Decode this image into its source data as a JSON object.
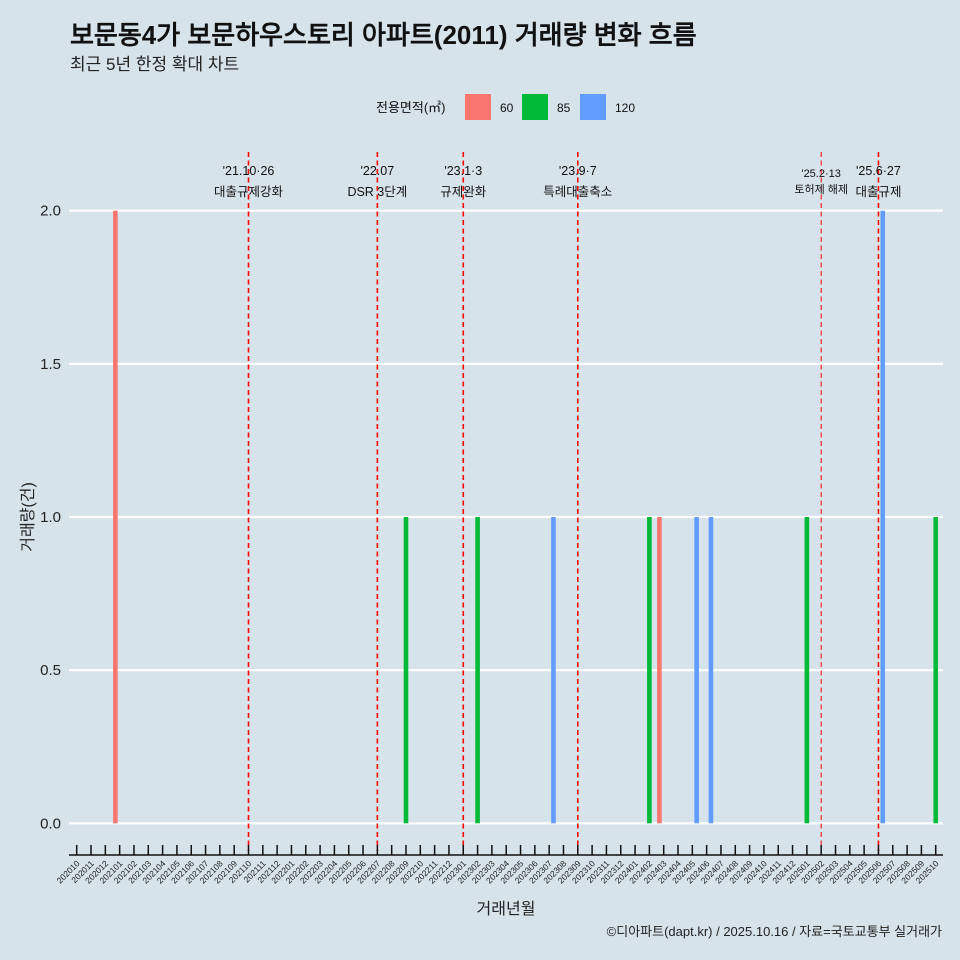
{
  "header": {
    "title": "보문동4가 보문하우스토리 아파트(2011) 거래량 변화 흐름",
    "subtitle": "최근 5년 한정 확대 차트"
  },
  "legend": {
    "title": "전용면적(㎡)",
    "items": [
      {
        "label": "60",
        "color": "#F8766D"
      },
      {
        "label": "85",
        "color": "#00BA38"
      },
      {
        "label": "120",
        "color": "#619CFF"
      }
    ]
  },
  "axes": {
    "xlabel": "거래년월",
    "ylabel": "거래량(건)"
  },
  "caption": "©디아파트(dapt.kr) / 2025.10.16 / 자료=국토교통부 실거래가",
  "chart_data": {
    "type": "bar",
    "title": "보문동4가 보문하우스토리 아파트(2011) 거래량 변화 흐름",
    "subtitle": "최근 5년 한정 확대 차트",
    "xlabel": "거래년월",
    "ylabel": "거래량(건)",
    "ylim": [
      0,
      2
    ],
    "yticks": [
      0,
      0.5,
      1,
      1.5,
      2
    ],
    "ytick_labels": [
      "0.0",
      "0.5",
      "1.0",
      "1.5",
      "2.0"
    ],
    "grid": true,
    "legend_position": "top",
    "legend_title": "전용면적(㎡)",
    "categories": [
      "202010",
      "202011",
      "202012",
      "202101",
      "202102",
      "202103",
      "202104",
      "202105",
      "202106",
      "202107",
      "202108",
      "202109",
      "202110",
      "202111",
      "202112",
      "202201",
      "202202",
      "202203",
      "202204",
      "202205",
      "202206",
      "202207",
      "202208",
      "202209",
      "202210",
      "202211",
      "202212",
      "202301",
      "202302",
      "202303",
      "202304",
      "202305",
      "202306",
      "202307",
      "202308",
      "202309",
      "202310",
      "202311",
      "202312",
      "202401",
      "202402",
      "202403",
      "202404",
      "202405",
      "202406",
      "202407",
      "202408",
      "202409",
      "202410",
      "202411",
      "202412",
      "202501",
      "202502",
      "202503",
      "202504",
      "202505",
      "202506",
      "202507",
      "202508",
      "202509",
      "202510"
    ],
    "series": [
      {
        "name": "60",
        "color": "#F8766D",
        "values": [
          0,
          0,
          0,
          2,
          0,
          0,
          0,
          0,
          0,
          0,
          0,
          0,
          0,
          0,
          0,
          0,
          0,
          0,
          0,
          0,
          0,
          0,
          0,
          0,
          0,
          0,
          0,
          0,
          0,
          0,
          0,
          0,
          0,
          0,
          0,
          0,
          0,
          0,
          0,
          0,
          0,
          1,
          0,
          0,
          0,
          0,
          0,
          0,
          0,
          0,
          0,
          0,
          0,
          0,
          0,
          0,
          0,
          0,
          0,
          0,
          0
        ]
      },
      {
        "name": "85",
        "color": "#00BA38",
        "values": [
          0,
          0,
          0,
          0,
          0,
          0,
          0,
          0,
          0,
          0,
          0,
          0,
          0,
          0,
          0,
          0,
          0,
          0,
          0,
          0,
          0,
          0,
          0,
          1,
          0,
          0,
          0,
          0,
          1,
          0,
          0,
          0,
          0,
          0,
          0,
          0,
          0,
          0,
          0,
          0,
          1,
          0,
          0,
          0,
          0,
          0,
          0,
          0,
          0,
          0,
          0,
          1,
          0,
          0,
          0,
          0,
          0,
          0,
          0,
          0,
          1
        ]
      },
      {
        "name": "120",
        "color": "#619CFF",
        "values": [
          0,
          0,
          0,
          0,
          0,
          0,
          0,
          0,
          0,
          0,
          0,
          0,
          0,
          0,
          0,
          0,
          0,
          0,
          0,
          0,
          0,
          0,
          0,
          0,
          0,
          0,
          0,
          0,
          0,
          0,
          0,
          0,
          0,
          1,
          0,
          0,
          0,
          0,
          0,
          0,
          0,
          0,
          0,
          1,
          1,
          0,
          0,
          0,
          0,
          0,
          0,
          0,
          0,
          0,
          0,
          0,
          2,
          0,
          0,
          0,
          0
        ]
      }
    ],
    "annotations": [
      {
        "x": "202110",
        "date": "'21.10·26",
        "label": "대출규제강화",
        "color": "#FF0000",
        "style": "major"
      },
      {
        "x": "202207",
        "date": "'22.07",
        "label": "DSR 3단계",
        "color": "#FF0000",
        "style": "major"
      },
      {
        "x": "202301",
        "date": "'23.1·3",
        "label": "규제완화",
        "color": "#FF0000",
        "style": "major"
      },
      {
        "x": "202309",
        "date": "'23.9·7",
        "label": "특례대출축소",
        "color": "#FF0000",
        "style": "major"
      },
      {
        "x": "202502",
        "date": "'25.2·13",
        "label": "토허제 해제",
        "color": "#FF0000",
        "style": "minor"
      },
      {
        "x": "202506",
        "date": "'25.6·27",
        "label": "대출규제",
        "color": "#FF0000",
        "style": "major"
      }
    ]
  }
}
